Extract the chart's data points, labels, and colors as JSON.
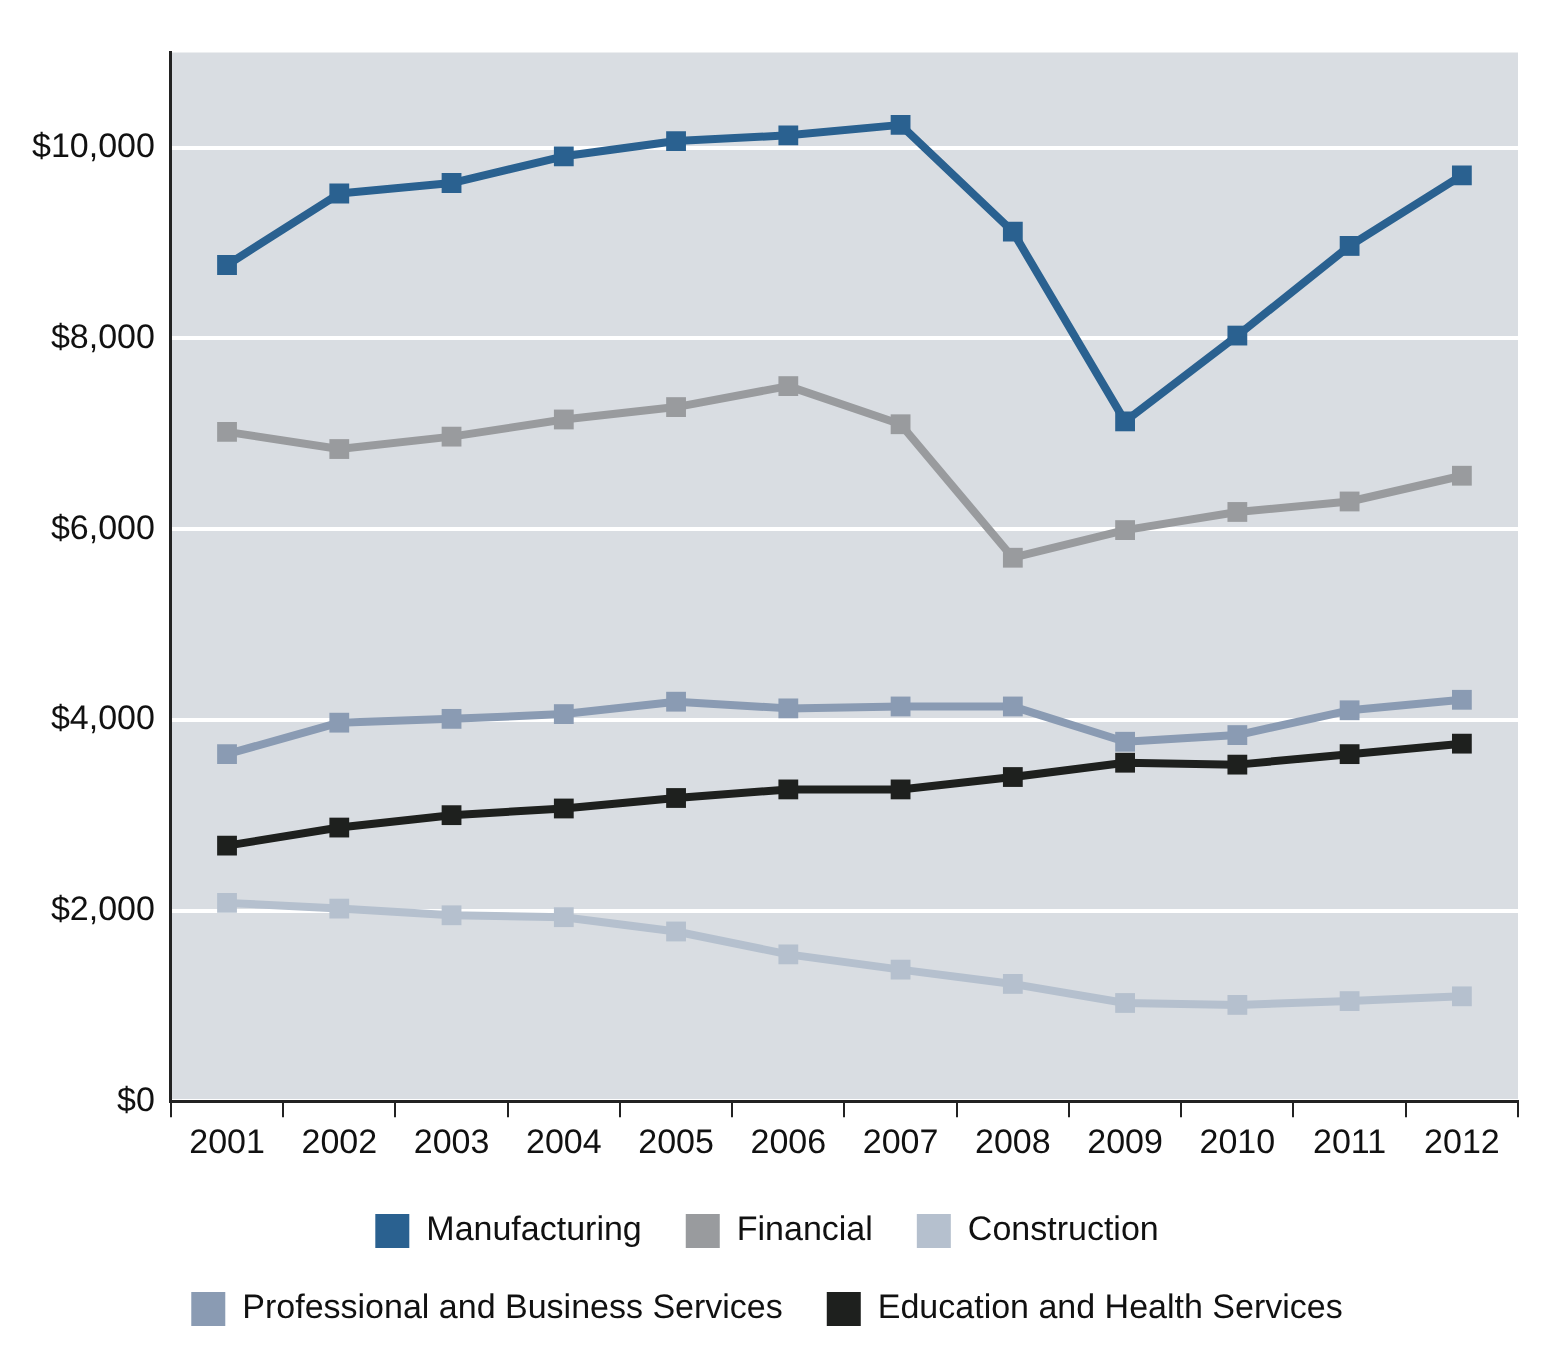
{
  "chart_data": {
    "type": "line",
    "categories": [
      "2001",
      "2002",
      "2003",
      "2004",
      "2005",
      "2006",
      "2007",
      "2008",
      "2009",
      "2010",
      "2011",
      "2012"
    ],
    "series": [
      {
        "name": "Manufacturing",
        "color": "#2a6190",
        "values": [
          8770,
          9520,
          9630,
          9910,
          10070,
          10130,
          10240,
          9120,
          7130,
          8030,
          8970,
          9710
        ]
      },
      {
        "name": "Financial",
        "color": "#999b9e",
        "values": [
          7020,
          6840,
          6970,
          7150,
          7280,
          7500,
          7100,
          5700,
          5990,
          6180,
          6290,
          6560
        ]
      },
      {
        "name": "Construction",
        "color": "#b5c0ce",
        "values": [
          2080,
          2020,
          1950,
          1930,
          1780,
          1540,
          1380,
          1230,
          1030,
          1010,
          1050,
          1100
        ]
      },
      {
        "name": "Professional and Business Services",
        "color": "#8a9bb3",
        "values": [
          3640,
          3970,
          4010,
          4060,
          4190,
          4120,
          4140,
          4140,
          3770,
          3840,
          4100,
          4210
        ]
      },
      {
        "name": "Education and Health Services",
        "color": "#1e201e",
        "values": [
          2680,
          2870,
          3000,
          3070,
          3180,
          3270,
          3270,
          3400,
          3550,
          3530,
          3640,
          3750
        ]
      }
    ],
    "ylim": [
      0,
      11000
    ],
    "yticks": [
      {
        "value": 0,
        "label": "$0"
      },
      {
        "value": 2000,
        "label": "$2,000"
      },
      {
        "value": 4000,
        "label": "$4,000"
      },
      {
        "value": 6000,
        "label": "$6,000"
      },
      {
        "value": 8000,
        "label": "$8,000"
      },
      {
        "value": 10000,
        "label": "$10,000"
      }
    ],
    "grid": "y",
    "legend": "bottom",
    "marker": "square",
    "line_style": "solid"
  }
}
